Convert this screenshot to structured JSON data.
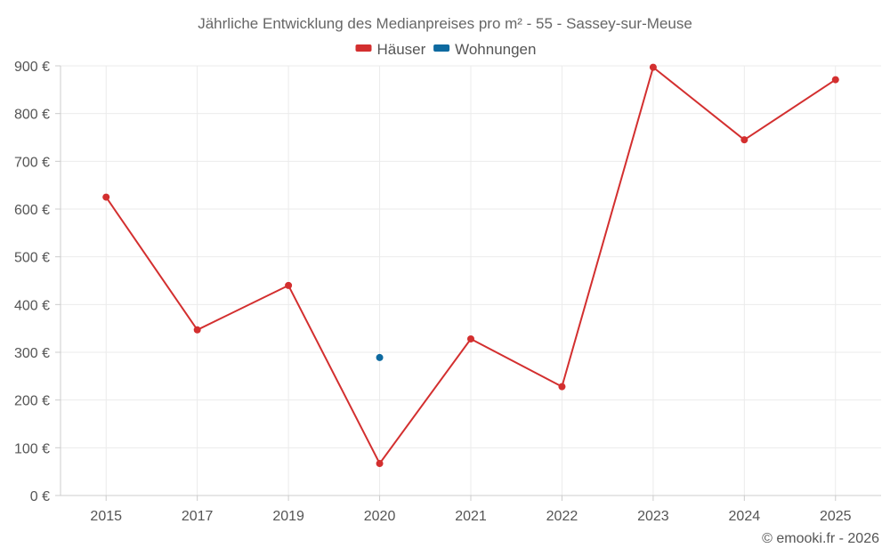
{
  "chart_data": {
    "type": "line",
    "title": "Jährliche Entwicklung des Medianpreises pro m² - 55 - Sassey-sur-Meuse",
    "xlabel": "",
    "ylabel": "",
    "categories": [
      "2015",
      "2017",
      "2019",
      "2020",
      "2021",
      "2022",
      "2023",
      "2024",
      "2025"
    ],
    "ylim": [
      0,
      900
    ],
    "yticks": [
      0,
      100,
      200,
      300,
      400,
      500,
      600,
      700,
      800,
      900
    ],
    "ytick_labels": [
      "0 €",
      "100 €",
      "200 €",
      "300 €",
      "400 €",
      "500 €",
      "600 €",
      "700 €",
      "800 €",
      "900 €"
    ],
    "grid": true,
    "legend_position": "top-center",
    "series": [
      {
        "name": "Häuser",
        "color": "#d32f2f",
        "values": [
          625,
          347,
          440,
          67,
          328,
          228,
          897,
          745,
          871
        ]
      },
      {
        "name": "Wohnungen",
        "color": "#0e6aa0",
        "values": [
          null,
          null,
          null,
          289,
          null,
          null,
          null,
          null,
          null
        ]
      }
    ]
  },
  "credit": "© emooki.fr - 2026"
}
